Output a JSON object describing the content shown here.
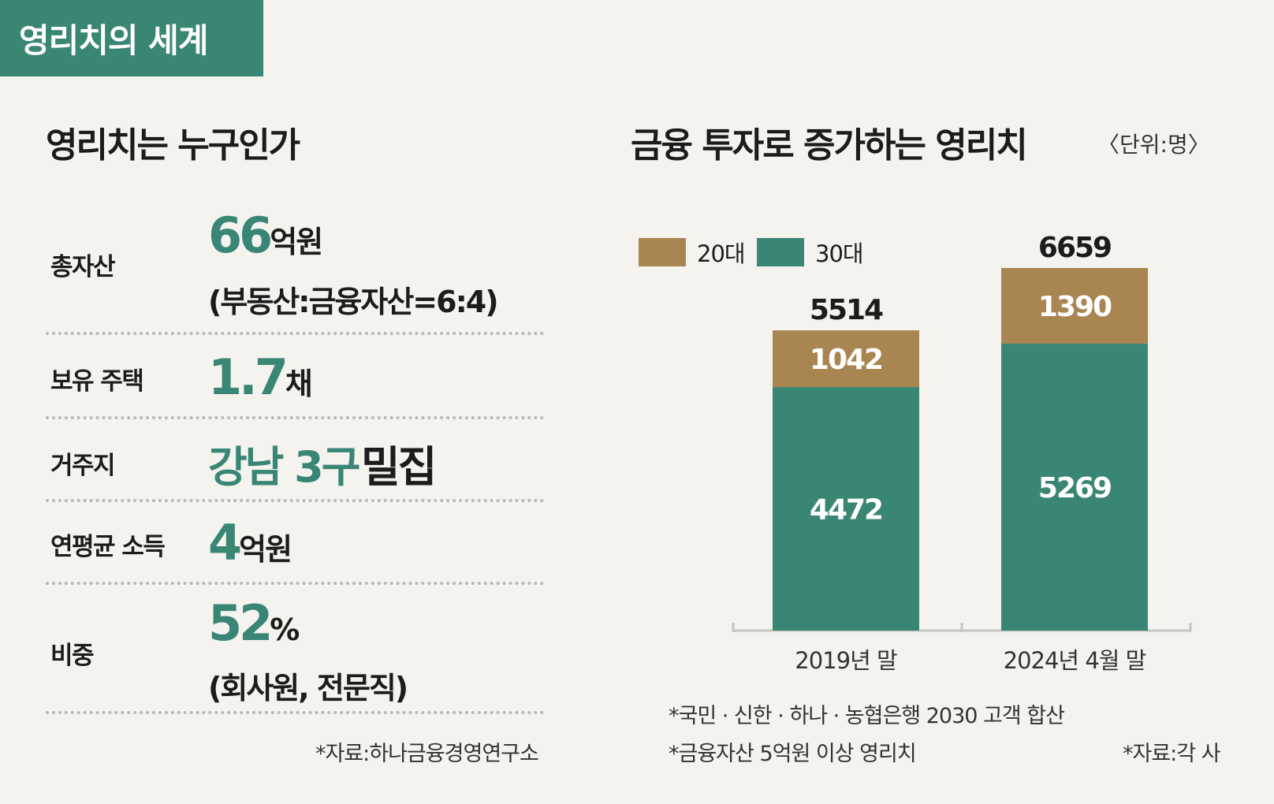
{
  "tag": "영리치의 세계",
  "left": {
    "title": "영리치는 누구인가",
    "rows": [
      {
        "label": "총자산",
        "value_num": "66",
        "value_unit": "억원",
        "sub": "(부동산:금융자산=6:4)"
      },
      {
        "label": "보유 주택",
        "value_num": "1.7",
        "value_unit": "채"
      },
      {
        "label": "거주지",
        "value_num": "강남 3구",
        "value_unit": "밀집"
      },
      {
        "label": "연평균 소득",
        "value_num": "4",
        "value_unit": "억원"
      },
      {
        "label": "비중",
        "value_num": "52",
        "value_unit": "%",
        "sub": "(회사원, 전문직)"
      }
    ],
    "source": "*자료:하나금융경영연구소"
  },
  "right": {
    "title": "금융 투자로 증가하는 영리치",
    "unit": "〈단위:명〉",
    "notes": [
      "*국민 · 신한 · 하나 · 농협은행 2030 고객 합산",
      "*금융자산 5억원 이상 영리치"
    ],
    "source": "*자료:각 사"
  },
  "colors": {
    "accent": "#3a8675",
    "brown": "#a98551",
    "bg": "#f4f3ee"
  },
  "chart_data": {
    "type": "bar",
    "stacked": true,
    "categories": [
      "2019년 말",
      "2024년 4월 말"
    ],
    "series": [
      {
        "name": "30대",
        "values": [
          4472,
          5269
        ],
        "color": "#3a8675"
      },
      {
        "name": "20대",
        "values": [
          1042,
          1390
        ],
        "color": "#a98551"
      }
    ],
    "totals": [
      5514,
      6659
    ],
    "legend": "top-left"
  }
}
